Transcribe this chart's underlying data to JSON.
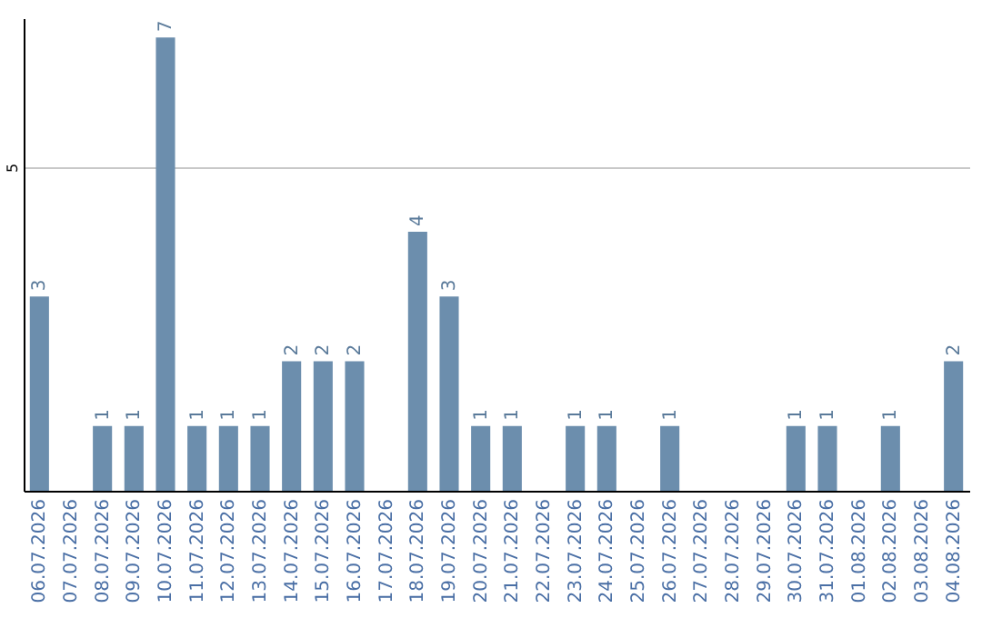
{
  "chart_data": {
    "type": "bar",
    "categories": [
      "06.07.2026",
      "07.07.2026",
      "08.07.2026",
      "09.07.2026",
      "10.07.2026",
      "11.07.2026",
      "12.07.2026",
      "13.07.2026",
      "14.07.2026",
      "15.07.2026",
      "16.07.2026",
      "17.07.2026",
      "18.07.2026",
      "19.07.2026",
      "20.07.2026",
      "21.07.2026",
      "22.07.2026",
      "23.07.2026",
      "24.07.2026",
      "25.07.2026",
      "26.07.2026",
      "27.07.2026",
      "28.07.2026",
      "29.07.2026",
      "30.07.2026",
      "31.07.2026",
      "01.08.2026",
      "02.08.2026",
      "03.08.2026",
      "04.08.2026"
    ],
    "values": [
      3,
      0,
      1,
      1,
      7,
      1,
      1,
      1,
      2,
      2,
      2,
      0,
      4,
      3,
      1,
      1,
      0,
      1,
      1,
      0,
      1,
      0,
      0,
      0,
      1,
      1,
      0,
      1,
      0,
      2
    ],
    "value_labels": [
      "3",
      null,
      "1",
      "1",
      "7",
      "1",
      "1",
      "1",
      "2",
      "2",
      "2",
      null,
      "4",
      "3",
      "1",
      "1",
      null,
      "1",
      "1",
      null,
      "1",
      null,
      null,
      null,
      "1",
      "1",
      null,
      "1",
      null,
      "2"
    ],
    "color": "#6c8ead",
    "ylim": [
      0,
      7.3
    ],
    "yticks": [
      5
    ],
    "grid": "y"
  }
}
